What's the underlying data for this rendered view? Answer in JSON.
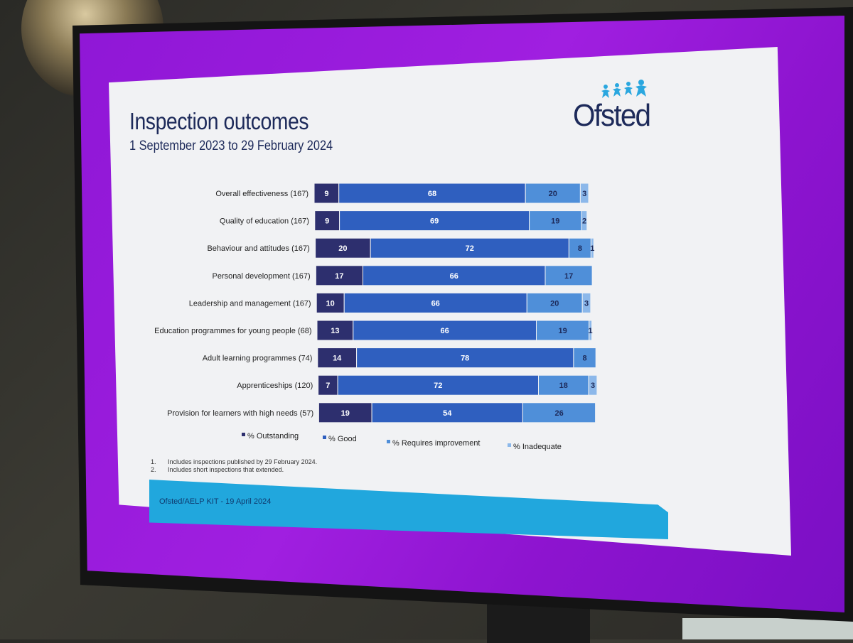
{
  "slide": {
    "title": "Inspection outcomes",
    "subtitle": "1 September 2023 to 29 February 2024",
    "logo_text": "Ofsted",
    "footnotes": [
      {
        "num": "1.",
        "text": "Includes inspections published by 29 February 2024."
      },
      {
        "num": "2.",
        "text": "Includes short inspections that extended."
      }
    ],
    "footer": "Ofsted/AELP KIT - 19 April 2024"
  },
  "colors": {
    "outstanding": "#2d2f6e",
    "good": "#2f5fbf",
    "requires_improvement": "#4f8fd9",
    "inadequate": "#8cb8ea",
    "screen_bezel": "#141414",
    "tv_purple": "#9a1cdd",
    "footer_blue": "#21a7dd"
  },
  "chart_data": {
    "type": "bar",
    "orientation": "horizontal",
    "stacked": true,
    "categories": [
      "Overall effectiveness (167)",
      "Quality of education (167)",
      "Behaviour and attitudes (167)",
      "Personal development (167)",
      "Leadership and management (167)",
      "Education programmes for young people (68)",
      "Adult learning programmes (74)",
      "Apprenticeships (120)",
      "Provision for learners with high needs (57)"
    ],
    "series": [
      {
        "name": "% Outstanding",
        "values": [
          9,
          9,
          20,
          17,
          10,
          13,
          14,
          7,
          19
        ]
      },
      {
        "name": "% Good",
        "values": [
          68,
          69,
          72,
          66,
          66,
          66,
          78,
          72,
          54
        ]
      },
      {
        "name": "% Requires improvement",
        "values": [
          20,
          19,
          8,
          17,
          20,
          19,
          8,
          18,
          26
        ]
      },
      {
        "name": "% Inadequate",
        "values": [
          3,
          2,
          1,
          0,
          3,
          1,
          0,
          3,
          0
        ]
      }
    ],
    "xlim": [
      0,
      100
    ],
    "grid": false,
    "legend_position": "bottom"
  }
}
